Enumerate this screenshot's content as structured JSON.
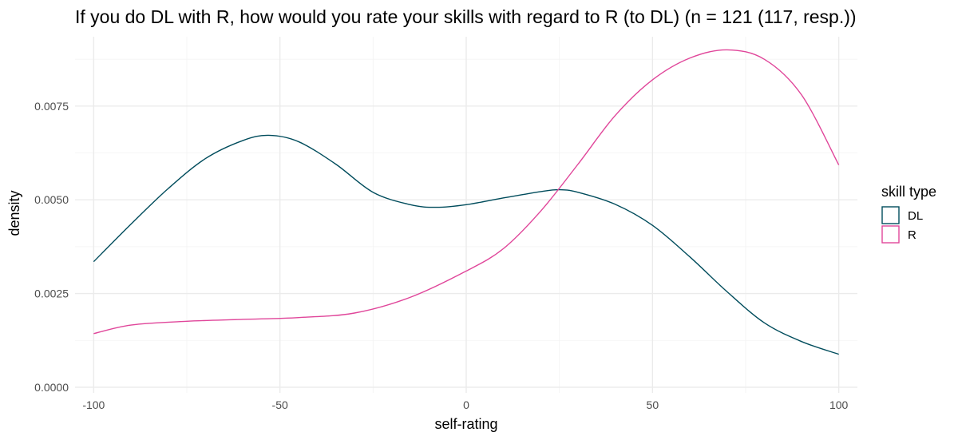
{
  "chart_data": {
    "type": "line",
    "title": "If you do DL with R, how would you rate your skills with regard to R (to DL) (n = 121 (117, resp.))",
    "xlabel": "self-rating",
    "ylabel": "density",
    "xlim": [
      -105,
      105
    ],
    "ylim": [
      -0.00015,
      0.00935
    ],
    "x_ticks": [
      -100,
      -50,
      0,
      50,
      100
    ],
    "x_tick_labels": [
      "-100",
      "-50",
      "0",
      "50",
      "100"
    ],
    "y_ticks": [
      0,
      0.0025,
      0.005,
      0.0075
    ],
    "y_tick_labels": [
      "0.0000",
      "0.0025",
      "0.0050",
      "0.0075"
    ],
    "grid": true,
    "legend": {
      "title": "skill type",
      "position": "right"
    },
    "series": [
      {
        "name": "DL",
        "color": "#004c5c",
        "x": [
          -100,
          -90,
          -80,
          -70,
          -60,
          -53,
          -45,
          -35,
          -25,
          -15,
          -8,
          0,
          10,
          20,
          25,
          30,
          40,
          50,
          60,
          70,
          80,
          90,
          100
        ],
        "y": [
          0.00335,
          0.00435,
          0.0053,
          0.0061,
          0.00658,
          0.00672,
          0.00655,
          0.00595,
          0.0052,
          0.00487,
          0.0048,
          0.00487,
          0.00505,
          0.00522,
          0.00527,
          0.0052,
          0.00488,
          0.00432,
          0.00348,
          0.00255,
          0.00172,
          0.00122,
          0.00088
        ]
      },
      {
        "name": "R",
        "color": "#e0469a",
        "x": [
          -100,
          -90,
          -75,
          -60,
          -45,
          -30,
          -15,
          0,
          10,
          20,
          30,
          40,
          50,
          60,
          70,
          80,
          90,
          100
        ],
        "y": [
          0.00143,
          0.00166,
          0.00176,
          0.00181,
          0.00186,
          0.00198,
          0.0024,
          0.0031,
          0.0037,
          0.0047,
          0.00595,
          0.00725,
          0.0082,
          0.00878,
          0.009,
          0.00875,
          0.0078,
          0.00593
        ]
      }
    ]
  }
}
